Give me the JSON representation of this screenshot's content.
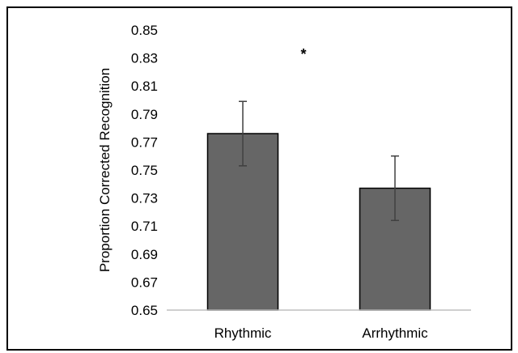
{
  "chart_data": {
    "type": "bar",
    "categories": [
      "Rhythmic",
      "Arrhythmic"
    ],
    "values": [
      0.776,
      0.737
    ],
    "error": [
      0.023,
      0.023
    ],
    "ylabel": "Proportion Corrected Recognition",
    "xlabel": "",
    "ylim": [
      0.65,
      0.85
    ],
    "y_ticks": [
      "0.85",
      "0.83",
      "0.81",
      "0.79",
      "0.77",
      "0.75",
      "0.73",
      "0.71",
      "0.69",
      "0.67",
      "0.65"
    ],
    "grid": false,
    "annotation": "*",
    "colors": {
      "bar_fill": "#666666",
      "bar_stroke": "#000000",
      "axis": "#bfbfbf",
      "error_bar": "#404040"
    }
  }
}
